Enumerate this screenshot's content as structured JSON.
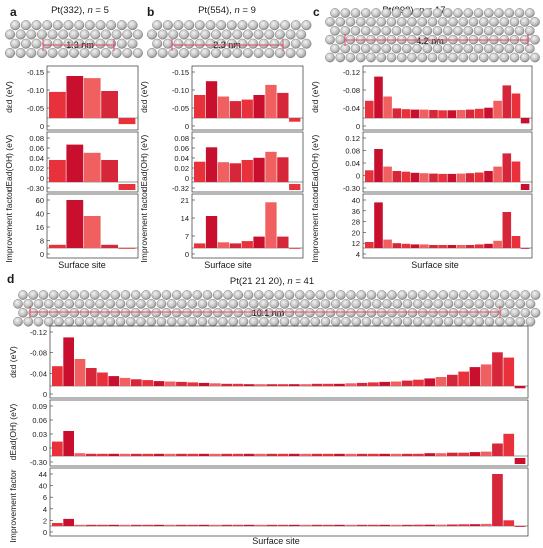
{
  "figure": {
    "panels": [
      {
        "letter": "a",
        "title_name": "Pt(332), ",
        "n_label": "n",
        "n_value": " = 5",
        "dimension": "1.3 nm",
        "xlabel": "Surface site"
      },
      {
        "letter": "b",
        "title_name": "Pt(554), ",
        "n_label": "n",
        "n_value": " = 9",
        "dimension": "2.3 nm",
        "xlabel": "Surface site"
      },
      {
        "letter": "c",
        "title_name": "Pt(998), ",
        "n_label": "n",
        "n_value": " = 17",
        "dimension": "4.2 nm",
        "xlabel": "Surface site"
      },
      {
        "letter": "d",
        "title_name": "Pt(21 21 20), ",
        "n_label": "n",
        "n_value": " = 41",
        "dimension": "10.1 nm",
        "xlabel": "Surface site"
      }
    ],
    "ylabels": {
      "row1": "dεd (eV)",
      "row2": "dEad(OH) (eV)",
      "row3": "Improvement factor"
    }
  },
  "chart_data": [
    {
      "type": "bar",
      "panel": "a",
      "rows": [
        {
          "ylabel": "d εd (eV)",
          "ylim": [
            -0.15,
            0.0
          ],
          "yticks": [
            "-0.15",
            "-0.10",
            "-0.05",
            "0"
          ],
          "inverted": true,
          "values": [
            -0.085,
            -0.137,
            -0.13,
            -0.088,
            0.02
          ]
        },
        {
          "ylabel": "dEad(OH) (eV)",
          "ylim": [
            0,
            0.08
          ],
          "yticks": [
            "0.08",
            "0.06",
            "0.04",
            "0.02",
            "0",
            "-0.30"
          ],
          "axis_break": true,
          "values": [
            0.04,
            0.068,
            0.053,
            0.04,
            -0.3
          ]
        },
        {
          "ylabel": "Improvement factor",
          "ylim": [
            0,
            60
          ],
          "yticks": [
            "60",
            "40",
            "16",
            "8",
            "0"
          ],
          "axis_break": true,
          "values": [
            4,
            60,
            40,
            4,
            0
          ]
        }
      ]
    },
    {
      "type": "bar",
      "panel": "b",
      "rows": [
        {
          "ylabel": "d εd (eV)",
          "ylim": [
            -0.15,
            0.0
          ],
          "yticks": [
            "-0.15",
            "-0.10",
            "-0.05",
            "0"
          ],
          "inverted": true,
          "values": [
            -0.075,
            -0.12,
            -0.07,
            -0.055,
            -0.06,
            -0.075,
            -0.108,
            -0.082,
            0.012
          ]
        },
        {
          "ylabel": "dEad(OH) (eV)",
          "ylim": [
            0,
            0.08
          ],
          "yticks": [
            "0.08",
            "0.06",
            "0.04",
            "0.02",
            "0",
            "-0.32"
          ],
          "axis_break": true,
          "values": [
            0.037,
            0.063,
            0.036,
            0.034,
            0.04,
            0.044,
            0.055,
            0.045,
            -0.32
          ]
        },
        {
          "ylabel": "Improvement factor",
          "ylim": [
            0,
            21
          ],
          "yticks": [
            "21",
            "14",
            "7",
            "0"
          ],
          "values": [
            2,
            14,
            2.5,
            2,
            3,
            5,
            20,
            5,
            0
          ]
        }
      ]
    },
    {
      "type": "bar",
      "panel": "c",
      "rows": [
        {
          "ylabel": "d εd (eV)",
          "ylim": [
            -0.12,
            0.0
          ],
          "yticks": [
            "-0.12",
            "-0.08",
            "-0.04",
            "0"
          ],
          "inverted": true,
          "values": [
            -0.045,
            -0.108,
            -0.056,
            -0.025,
            -0.023,
            -0.022,
            -0.022,
            -0.021,
            -0.02,
            -0.02,
            -0.021,
            -0.022,
            -0.024,
            -0.027,
            -0.045,
            -0.085,
            -0.064,
            0.014
          ]
        },
        {
          "ylabel": "dEad(OH) (eV)",
          "ylim": [
            0,
            0.12
          ],
          "yticks": [
            "0.12",
            "0.08",
            "0.04",
            "0",
            "-0.30"
          ],
          "axis_break": true,
          "values": [
            0.032,
            0.09,
            0.042,
            0.03,
            0.028,
            0.025,
            0.024,
            0.023,
            0.022,
            0.022,
            0.023,
            0.024,
            0.026,
            0.03,
            0.042,
            0.078,
            0.056,
            -0.3
          ]
        },
        {
          "ylabel": "Improvement factor",
          "ylim": [
            0,
            40
          ],
          "yticks": [
            "40",
            "36",
            "28",
            "20",
            "12",
            "4"
          ],
          "axis_break": true,
          "values": [
            5,
            38,
            7,
            4,
            3.5,
            3,
            3,
            2.5,
            2.5,
            2.5,
            2.5,
            2.5,
            3,
            3.5,
            6,
            30,
            10,
            0
          ]
        }
      ]
    },
    {
      "type": "bar",
      "panel": "d",
      "rows": [
        {
          "ylabel": "d εd (eV)",
          "ylim": [
            -0.12,
            0.0
          ],
          "yticks": [
            "-0.12",
            "-0.08",
            "-0.04",
            "0"
          ],
          "inverted": true,
          "values": [
            -0.044,
            -0.108,
            -0.06,
            -0.04,
            -0.03,
            -0.022,
            -0.018,
            -0.015,
            -0.013,
            -0.011,
            -0.01,
            -0.009,
            -0.008,
            -0.007,
            -0.006,
            -0.005,
            -0.005,
            -0.004,
            -0.004,
            -0.004,
            -0.004,
            -0.004,
            -0.004,
            -0.005,
            -0.005,
            -0.005,
            -0.006,
            -0.007,
            -0.008,
            -0.009,
            -0.01,
            -0.012,
            -0.014,
            -0.017,
            -0.02,
            -0.025,
            -0.032,
            -0.042,
            -0.048,
            -0.075,
            -0.063,
            0.005
          ]
        },
        {
          "ylabel": "dEad(OH) (eV)",
          "ylim": [
            0,
            0.09
          ],
          "yticks": [
            "0.09",
            "0.06",
            "0.03",
            "0",
            "-0.30"
          ],
          "axis_break": true,
          "values": [
            0.026,
            0.045,
            0.005,
            0.004,
            0.004,
            0.004,
            0.004,
            0.004,
            0.004,
            0.004,
            0.004,
            0.004,
            0.004,
            0.004,
            0.004,
            0.004,
            0.004,
            0.004,
            0.004,
            0.004,
            0.004,
            0.004,
            0.004,
            0.004,
            0.004,
            0.004,
            0.004,
            0.004,
            0.004,
            0.004,
            0.004,
            0.004,
            0.004,
            0.005,
            0.005,
            0.006,
            0.006,
            0.007,
            0.008,
            0.095,
            0.04,
            -0.3
          ]
        },
        {
          "ylabel": "Improvement factor",
          "ylim": [
            0,
            44
          ],
          "yticks": [
            "44",
            "40",
            "6",
            "4",
            "2",
            "0"
          ],
          "axis_break": true,
          "values": [
            2.5,
            6,
            1,
            1,
            1,
            1,
            1,
            1,
            1,
            1,
            1,
            1,
            1,
            1,
            1,
            1,
            1,
            1,
            1,
            1,
            1,
            1,
            1,
            1,
            1,
            1,
            1,
            1,
            1,
            1,
            1,
            1,
            1.1,
            1.1,
            1.2,
            1.3,
            1.4,
            1.5,
            1.8,
            44,
            4.8,
            0
          ]
        }
      ]
    }
  ]
}
